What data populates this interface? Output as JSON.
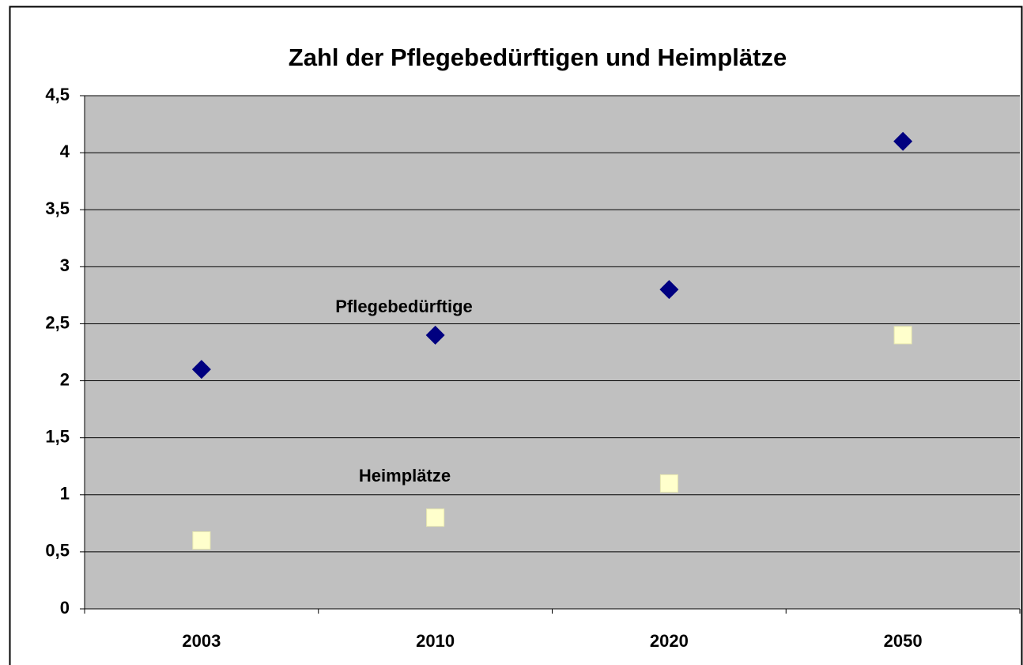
{
  "chart_data": {
    "type": "scatter",
    "title": "Zahl der Pflegebedürftigen und Heimplätze",
    "categories": [
      "2003",
      "2010",
      "2020",
      "2050"
    ],
    "series": [
      {
        "name": "Pflegebedürftige",
        "color": "#000080",
        "marker": "diamond",
        "values": [
          2.1,
          2.4,
          2.8,
          4.1
        ]
      },
      {
        "name": "Heimplätze",
        "color": "#ffffcc",
        "marker": "square",
        "values": [
          0.6,
          0.8,
          1.1,
          2.4
        ]
      }
    ],
    "ylim": [
      0,
      4.5
    ],
    "yticks": [
      0,
      {
        "value": 0.5,
        "label": "0,5"
      },
      1,
      {
        "value": 1.5,
        "label": "1,5"
      },
      2,
      {
        "value": 2.5,
        "label": "2,5"
      },
      3,
      {
        "value": 3.5,
        "label": "3,5"
      },
      4,
      {
        "value": 4.5,
        "label": "4,5"
      }
    ],
    "grid": true
  }
}
